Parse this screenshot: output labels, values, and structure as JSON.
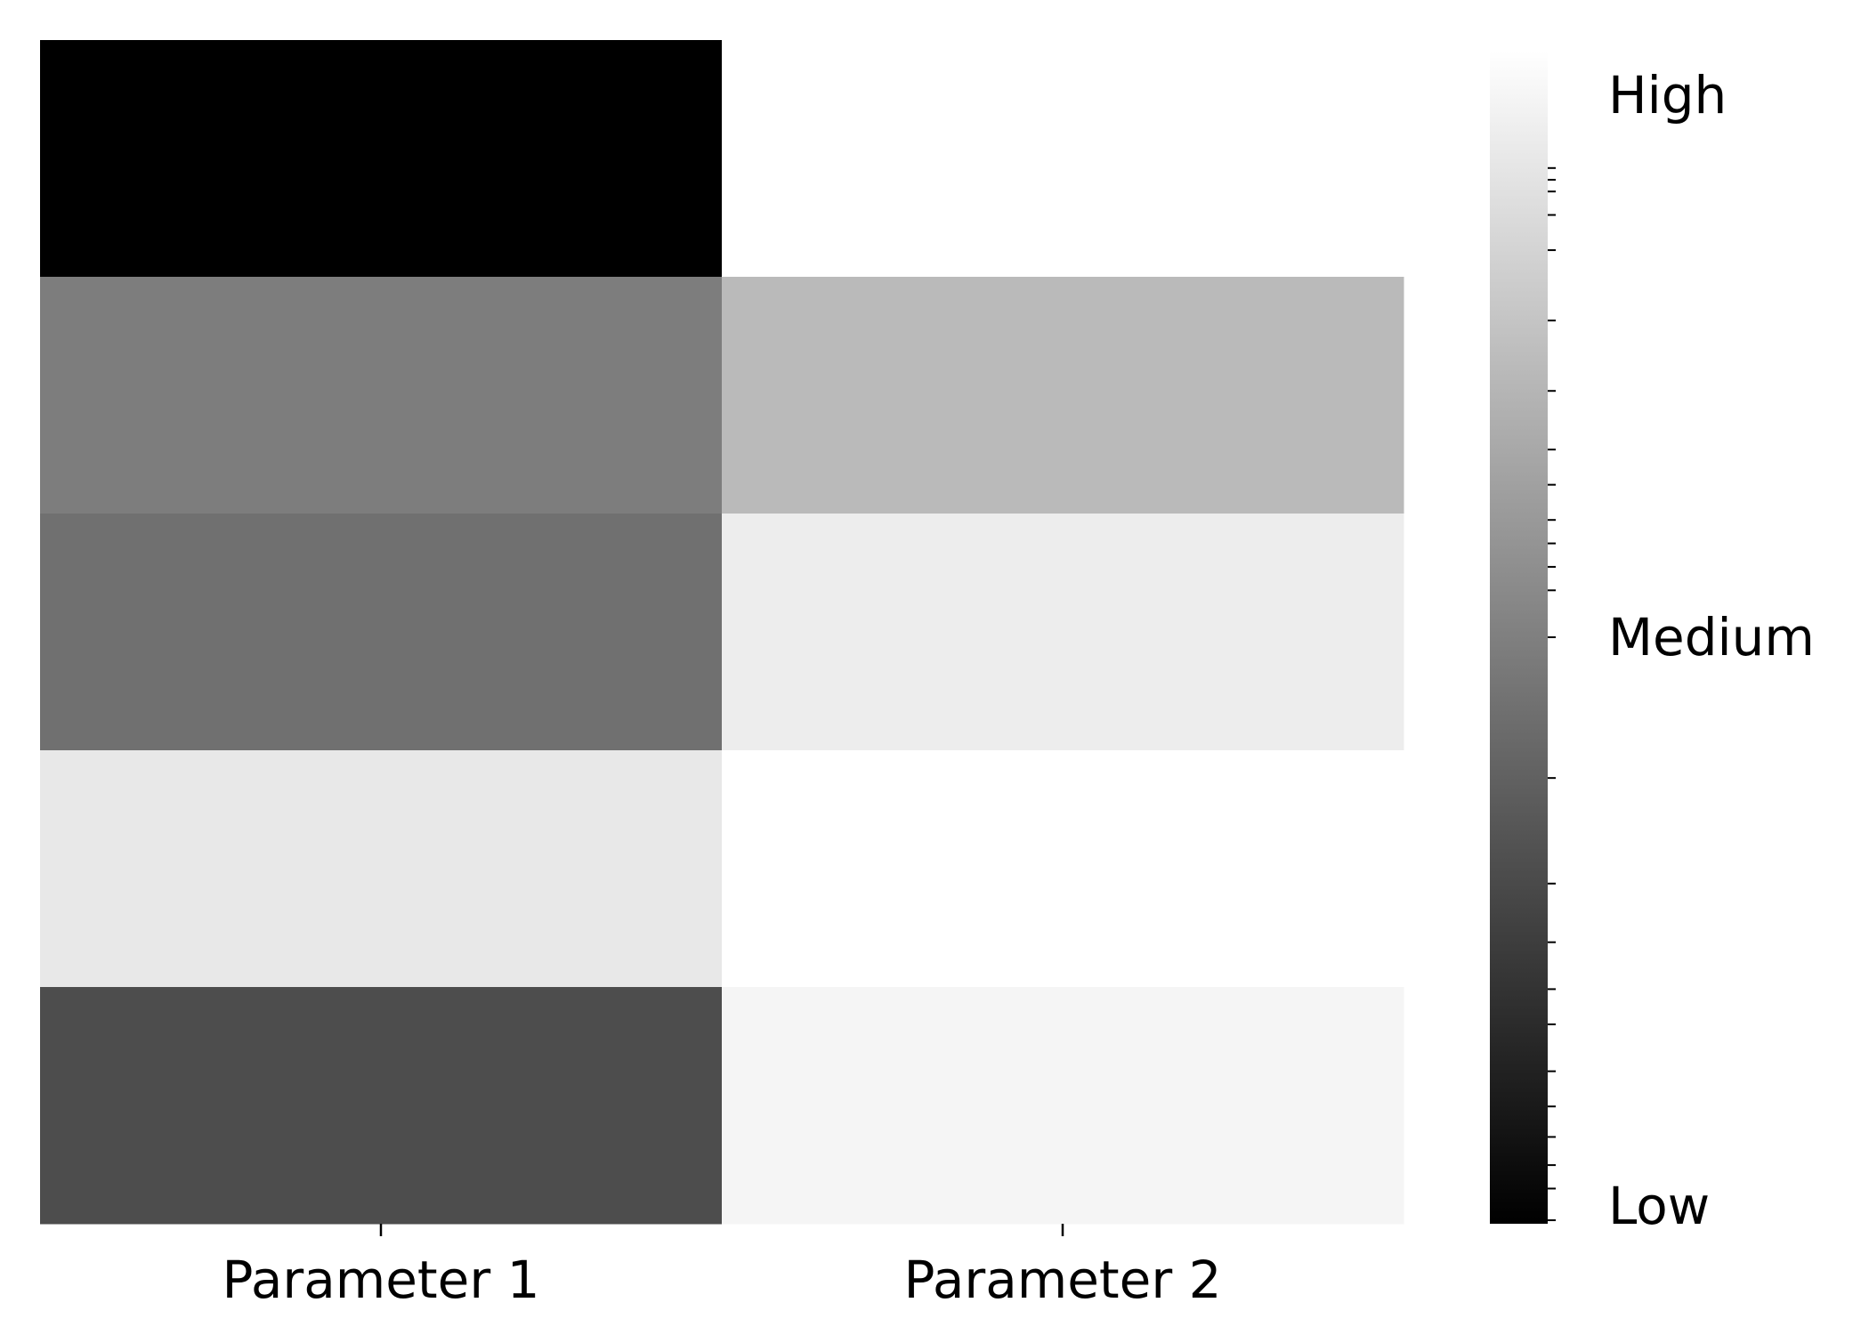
{
  "chart_data": {
    "type": "heatmap",
    "title": "",
    "xlabel": "",
    "ylabel": "",
    "columns": [
      "Parameter 1",
      "Parameter 2"
    ],
    "rows": 5,
    "colormap": "grayscale (black = low, white = high)",
    "values": [
      [
        0.0,
        1.0
      ],
      [
        0.49,
        0.73
      ],
      [
        0.44,
        0.93
      ],
      [
        0.91,
        1.0
      ],
      [
        0.3,
        0.96
      ]
    ],
    "grid": false,
    "colorbar": {
      "position": "right",
      "tick_labels": [
        "Low",
        "Medium",
        "High"
      ],
      "tick_values": [
        0.0,
        0.5,
        1.0
      ],
      "scale": "log-like minor ticks",
      "minor_ticks": [
        0.003,
        0.03,
        0.05,
        0.074,
        0.1,
        0.13,
        0.17,
        0.2,
        0.24,
        0.29,
        0.38,
        0.5,
        0.54,
        0.56,
        0.58,
        0.6,
        0.63,
        0.66,
        0.71,
        0.77,
        0.83,
        0.86,
        0.88,
        0.89,
        0.9
      ],
      "color_low": "#000000",
      "color_high": "#ffffff"
    }
  }
}
